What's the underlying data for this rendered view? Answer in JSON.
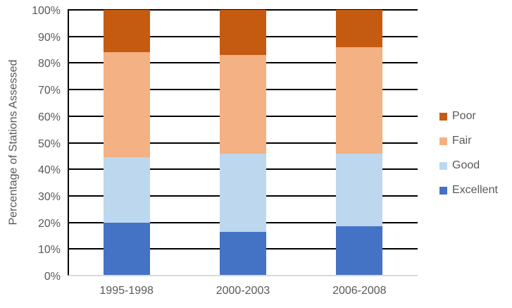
{
  "chart_data": {
    "type": "bar",
    "stacked": true,
    "percent_stacked": true,
    "title": "",
    "xlabel": "",
    "ylabel": "Percentage of Stations Assessed",
    "categories": [
      "1995-1998",
      "2000-2003",
      "2006-2008"
    ],
    "series": [
      {
        "name": "Excellent",
        "color": "#4472C4",
        "values": [
          20.0,
          16.5,
          18.5
        ]
      },
      {
        "name": "Good",
        "color": "#BDD7EE",
        "values": [
          24.5,
          29.5,
          27.5
        ]
      },
      {
        "name": "Fair",
        "color": "#F4B183",
        "values": [
          39.5,
          37.0,
          40.0
        ]
      },
      {
        "name": "Poor",
        "color": "#C55A11",
        "values": [
          16.0,
          17.0,
          14.0
        ]
      }
    ],
    "legend_order": [
      "Poor",
      "Fair",
      "Good",
      "Excellent"
    ],
    "legend_position": "right",
    "ylim": [
      0,
      100
    ],
    "ytick_step": 10,
    "ytick_suffix": "%",
    "grid": true,
    "colors": {
      "gridline": "#000000",
      "y_axis_line": "#000000",
      "baseline": "#D9D9D9",
      "text": "#595959",
      "background": "#FFFFFF"
    }
  }
}
